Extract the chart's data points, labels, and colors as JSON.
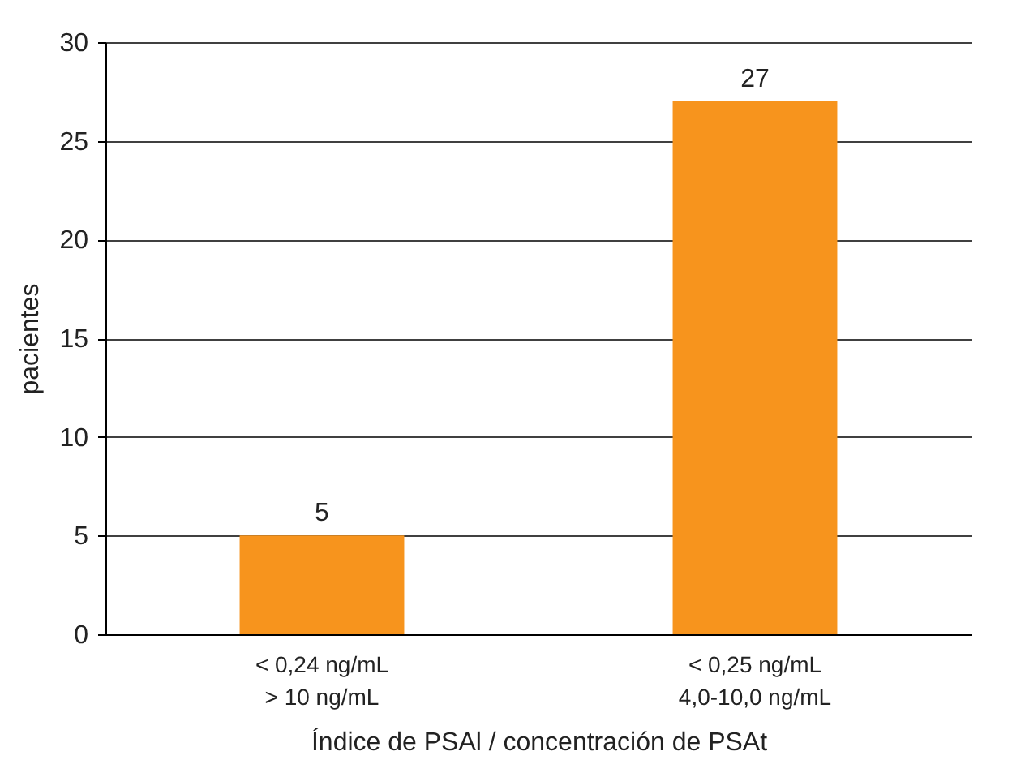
{
  "chart_data": {
    "type": "bar",
    "xlabel": "Índice de PSAl / concentración de PSAt",
    "ylabel": "pacientes",
    "categories": [
      "< 0,24 ng/mL\n> 10 ng/mL",
      "< 0,25 ng/mL\n4,0-10,0 ng/mL"
    ],
    "values": [
      5,
      27
    ],
    "color": "#f7941d",
    "ylim": [
      0,
      30
    ],
    "yticks": [
      0,
      5,
      10,
      15,
      20,
      25,
      30
    ],
    "grid": "y",
    "data_labels": true
  }
}
